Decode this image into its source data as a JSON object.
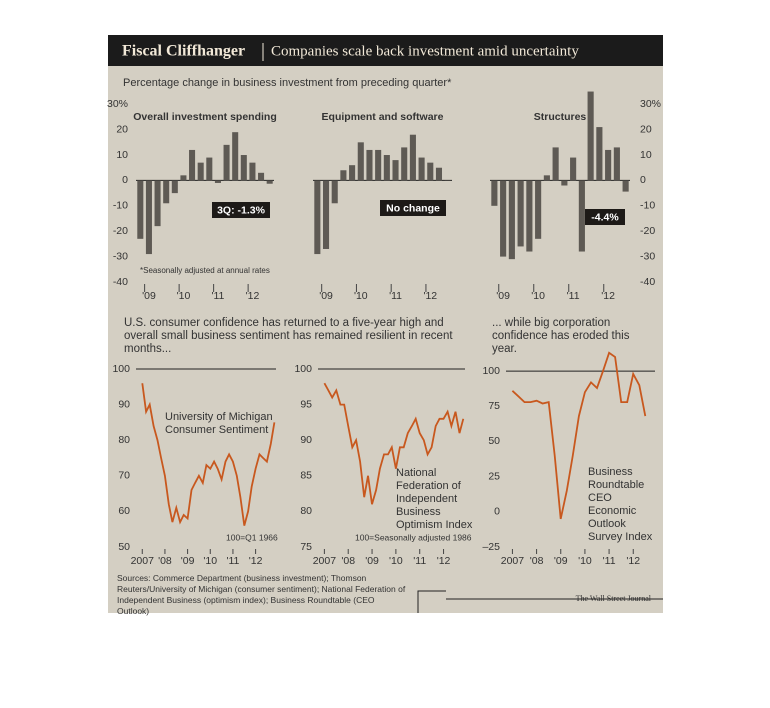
{
  "title": "Fiscal Cliffhanger",
  "subtitle": "Companies scale back investment amid uncertainty",
  "heading": "Percentage change in business investment from preceding quarter*",
  "footnote": "*Seasonally adjusted at annual rates",
  "bottom_heading_left": "U.S. consumer confidence has returned to a five-year high and overall small business sentiment has remained resilient in recent months...",
  "bottom_heading_right": "... while big corporation confidence has eroded this year.",
  "sources": "Sources: Commerce Department (business investment); Thomson Reuters/University of Michigan (consumer sentiment); National Federation of Independent Business (optimism index); Business Roundtable (CEO Outlook)",
  "credit": "The Wall Street Journal",
  "chart_data": [
    {
      "type": "bar",
      "title": "Overall investment spending",
      "annotation": "3Q: -1.3%",
      "color": "#5e5a54",
      "categories": [
        null,
        "'09",
        null,
        null,
        null,
        "'10",
        null,
        null,
        null,
        "'11",
        null,
        null,
        null,
        "'12",
        null,
        null
      ],
      "values": [
        -23,
        -29,
        -18,
        -9,
        -5,
        2,
        12,
        7,
        9,
        -1,
        14,
        19,
        10,
        7,
        3,
        -1.3
      ],
      "ylim": [
        -40,
        36
      ],
      "yticks": [
        {
          "value": 30,
          "label": "30%"
        },
        20,
        10,
        0,
        -10,
        -20,
        -30,
        -40
      ]
    },
    {
      "type": "bar",
      "title": "Equipment and software",
      "annotation": "No change",
      "color": "#5e5a54",
      "categories": [
        null,
        "'09",
        null,
        null,
        null,
        "'10",
        null,
        null,
        null,
        "'11",
        null,
        null,
        null,
        "'12",
        null,
        null
      ],
      "values": [
        -29,
        -27,
        -9,
        4,
        6,
        15,
        12,
        12,
        10,
        8,
        13,
        18,
        9,
        7,
        5,
        0
      ],
      "ylim": [
        -40,
        36
      ]
    },
    {
      "type": "bar",
      "title": "Structures",
      "annotation": "-4.4%",
      "color": "#5e5a54",
      "categories": [
        null,
        "'09",
        null,
        null,
        null,
        "'10",
        null,
        null,
        null,
        "'11",
        null,
        null,
        null,
        "'12",
        null,
        null
      ],
      "values": [
        -10,
        -30,
        -31,
        -26,
        -28,
        -23,
        2,
        13,
        -2,
        9,
        -28,
        35,
        21,
        12,
        13,
        -4.4
      ],
      "ylim": [
        -40,
        36
      ],
      "yticks": [
        {
          "value": 30,
          "label": "30%"
        },
        20,
        10,
        0,
        -10,
        -20,
        -30,
        -40
      ]
    },
    {
      "type": "line",
      "title": "University of Michigan Consumer Sentiment",
      "annotation": "100=Q1 1966",
      "color": "#c8581e",
      "reference": 100,
      "x": [
        2007,
        2007.17,
        2007.33,
        2007.5,
        2007.67,
        2007.83,
        2008,
        2008.17,
        2008.33,
        2008.5,
        2008.67,
        2008.83,
        2009,
        2009.17,
        2009.33,
        2009.5,
        2009.67,
        2009.83,
        2010,
        2010.17,
        2010.33,
        2010.5,
        2010.67,
        2010.83,
        2011,
        2011.17,
        2011.33,
        2011.5,
        2011.67,
        2011.83,
        2012,
        2012.17,
        2012.33,
        2012.5,
        2012.67,
        2012.83
      ],
      "values": [
        96,
        88,
        90,
        84,
        80,
        75,
        70,
        62,
        57,
        61,
        57,
        59,
        58,
        66,
        68,
        70,
        68,
        73,
        72,
        74,
        72,
        69,
        74,
        76,
        74,
        70,
        64,
        56,
        60,
        67,
        72,
        76,
        75,
        74,
        79,
        85
      ],
      "xlim": [
        2006.9,
        2012.9
      ],
      "xticks": [
        2007,
        {
          "value": 2008,
          "label": "'08"
        },
        {
          "value": 2009,
          "label": "'09"
        },
        {
          "value": 2010,
          "label": "'10"
        },
        {
          "value": 2011,
          "label": "'11"
        },
        {
          "value": 2012,
          "label": "'12"
        }
      ],
      "ylim": [
        50,
        100
      ],
      "yticks": [
        100,
        90,
        80,
        70,
        60,
        50
      ]
    },
    {
      "type": "line",
      "title": "National Federation of Independent Business Optimism Index",
      "annotation": "100=Seasonally adjusted 1986",
      "color": "#c8581e",
      "reference": 100,
      "x": [
        2007,
        2007.17,
        2007.33,
        2007.5,
        2007.67,
        2007.83,
        2008,
        2008.17,
        2008.33,
        2008.5,
        2008.67,
        2008.83,
        2009,
        2009.17,
        2009.33,
        2009.5,
        2009.67,
        2009.83,
        2010,
        2010.17,
        2010.33,
        2010.5,
        2010.67,
        2010.83,
        2011,
        2011.17,
        2011.33,
        2011.5,
        2011.67,
        2011.83,
        2012,
        2012.17,
        2012.33,
        2012.5,
        2012.67,
        2012.83
      ],
      "values": [
        98,
        97,
        96,
        97,
        95,
        95,
        92,
        89,
        90,
        87,
        82,
        85,
        81,
        83,
        86,
        88,
        88,
        89,
        86,
        89,
        89,
        91,
        92,
        93,
        91,
        90,
        88,
        89,
        92,
        93,
        93,
        94,
        92,
        94,
        91,
        93
      ],
      "xlim": [
        2006.9,
        2012.9
      ],
      "xticks": [
        2007,
        {
          "value": 2008,
          "label": "'08"
        },
        {
          "value": 2009,
          "label": "'09"
        },
        {
          "value": 2010,
          "label": "'10"
        },
        {
          "value": 2011,
          "label": "'11"
        },
        {
          "value": 2012,
          "label": "'12"
        }
      ],
      "ylim": [
        75,
        100
      ],
      "yticks": [
        100,
        95,
        90,
        85,
        80,
        75
      ]
    },
    {
      "type": "line",
      "title": "Business Roundtable CEO Economic Outlook Survey Index",
      "color": "#c8581e",
      "reference": 100,
      "x": [
        2007,
        2007.25,
        2007.5,
        2007.75,
        2008,
        2008.25,
        2008.5,
        2008.75,
        2009,
        2009.25,
        2009.5,
        2009.75,
        2010,
        2010.25,
        2010.5,
        2010.75,
        2011,
        2011.25,
        2011.5,
        2011.75,
        2012,
        2012.25,
        2012.5
      ],
      "values": [
        86,
        82,
        78,
        78,
        79,
        77,
        78,
        40,
        -5,
        15,
        40,
        68,
        85,
        92,
        88,
        100,
        113,
        110,
        78,
        78,
        98,
        90,
        68
      ],
      "xlim": [
        2006.9,
        2012.9
      ],
      "xticks": [
        2007,
        {
          "value": 2008,
          "label": "'08"
        },
        {
          "value": 2009,
          "label": "'09"
        },
        {
          "value": 2010,
          "label": "'10"
        },
        {
          "value": 2011,
          "label": "'11"
        },
        {
          "value": 2012,
          "label": "'12"
        }
      ],
      "ylim": [
        -25,
        115
      ],
      "yticks": [
        100,
        75,
        50,
        25,
        0,
        {
          "value": -25,
          "label": "–25"
        }
      ]
    }
  ]
}
